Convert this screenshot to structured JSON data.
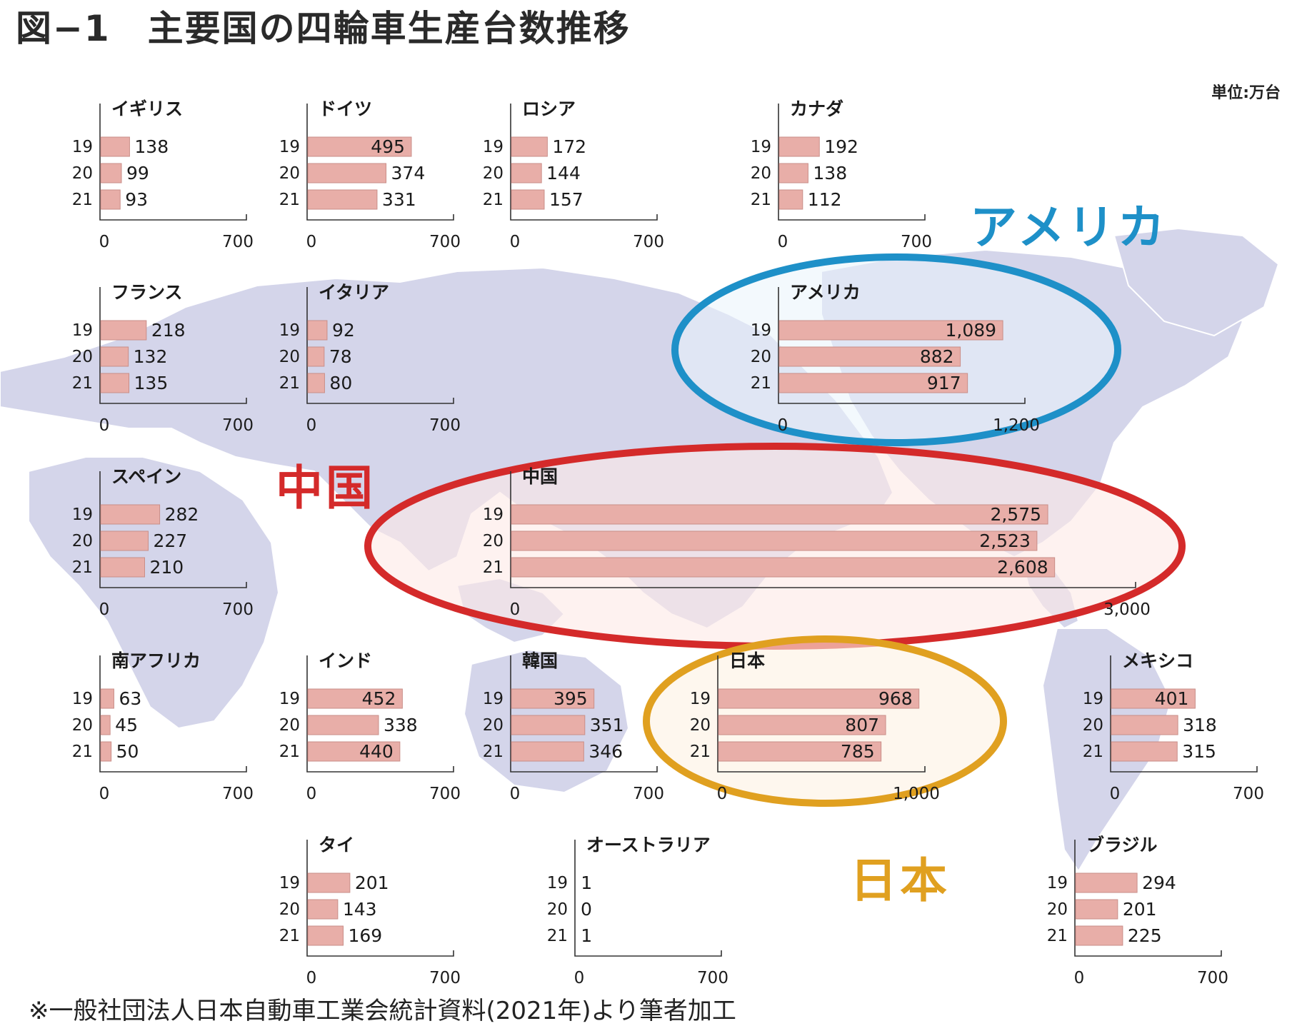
{
  "figure_title": "図−1　主要国の四輪車生産台数推移",
  "unit": "単位:万台",
  "footnote": "※一般社団法人日本自動車工業会統計資料(2021年)より筆者加工",
  "callouts": {
    "america": {
      "text": "アメリカ",
      "color": "#1e90c8"
    },
    "china": {
      "text": "中国",
      "color": "#d42a2a"
    },
    "japan": {
      "text": "日本",
      "color": "#e0a020"
    }
  },
  "highlight_colors": {
    "america": "#1e90c8",
    "china": "#d42a2a",
    "japan": "#e0a020"
  },
  "chart_data": [
    {
      "type": "bar",
      "title": "イギリス",
      "categories": [
        "19",
        "20",
        "21"
      ],
      "values": [
        138,
        99,
        93
      ],
      "labels": [
        "138",
        "99",
        "93"
      ],
      "xlim": [
        0,
        700
      ],
      "ticks": [
        "0",
        "700"
      ]
    },
    {
      "type": "bar",
      "title": "ドイツ",
      "categories": [
        "19",
        "20",
        "21"
      ],
      "values": [
        495,
        374,
        331
      ],
      "labels": [
        "495",
        "374",
        "331"
      ],
      "xlim": [
        0,
        700
      ],
      "ticks": [
        "0",
        "700"
      ]
    },
    {
      "type": "bar",
      "title": "ロシア",
      "categories": [
        "19",
        "20",
        "21"
      ],
      "values": [
        172,
        144,
        157
      ],
      "labels": [
        "172",
        "144",
        "157"
      ],
      "xlim": [
        0,
        700
      ],
      "ticks": [
        "0",
        "700"
      ]
    },
    {
      "type": "bar",
      "title": "カナダ",
      "categories": [
        "19",
        "20",
        "21"
      ],
      "values": [
        192,
        138,
        112
      ],
      "labels": [
        "192",
        "138",
        "112"
      ],
      "xlim": [
        0,
        700
      ],
      "ticks": [
        "0",
        "700"
      ]
    },
    {
      "type": "bar",
      "title": "フランス",
      "categories": [
        "19",
        "20",
        "21"
      ],
      "values": [
        218,
        132,
        135
      ],
      "labels": [
        "218",
        "132",
        "135"
      ],
      "xlim": [
        0,
        700
      ],
      "ticks": [
        "0",
        "700"
      ]
    },
    {
      "type": "bar",
      "title": "イタリア",
      "categories": [
        "19",
        "20",
        "21"
      ],
      "values": [
        92,
        78,
        80
      ],
      "labels": [
        "92",
        "78",
        "80"
      ],
      "xlim": [
        0,
        700
      ],
      "ticks": [
        "0",
        "700"
      ]
    },
    {
      "type": "bar",
      "title": "アメリカ",
      "categories": [
        "19",
        "20",
        "21"
      ],
      "values": [
        1089,
        882,
        917
      ],
      "labels": [
        "1,089",
        "882",
        "917"
      ],
      "xlim": [
        0,
        1200
      ],
      "ticks": [
        "0",
        "1,200"
      ]
    },
    {
      "type": "bar",
      "title": "スペイン",
      "categories": [
        "19",
        "20",
        "21"
      ],
      "values": [
        282,
        227,
        210
      ],
      "labels": [
        "282",
        "227",
        "210"
      ],
      "xlim": [
        0,
        700
      ],
      "ticks": [
        "0",
        "700"
      ]
    },
    {
      "type": "bar",
      "title": "中国",
      "categories": [
        "19",
        "20",
        "21"
      ],
      "values": [
        2575,
        2523,
        2608
      ],
      "labels": [
        "2,575",
        "2,523",
        "2,608"
      ],
      "xlim": [
        0,
        3000
      ],
      "ticks": [
        "0",
        "3,000"
      ]
    },
    {
      "type": "bar",
      "title": "南アフリカ",
      "categories": [
        "19",
        "20",
        "21"
      ],
      "values": [
        63,
        45,
        50
      ],
      "labels": [
        "63",
        "45",
        "50"
      ],
      "xlim": [
        0,
        700
      ],
      "ticks": [
        "0",
        "700"
      ]
    },
    {
      "type": "bar",
      "title": "インド",
      "categories": [
        "19",
        "20",
        "21"
      ],
      "values": [
        452,
        338,
        440
      ],
      "labels": [
        "452",
        "338",
        "440"
      ],
      "xlim": [
        0,
        700
      ],
      "ticks": [
        "0",
        "700"
      ]
    },
    {
      "type": "bar",
      "title": "韓国",
      "categories": [
        "19",
        "20",
        "21"
      ],
      "values": [
        395,
        351,
        346
      ],
      "labels": [
        "395",
        "351",
        "346"
      ],
      "xlim": [
        0,
        700
      ],
      "ticks": [
        "0",
        "700"
      ]
    },
    {
      "type": "bar",
      "title": "日本",
      "categories": [
        "19",
        "20",
        "21"
      ],
      "values": [
        968,
        807,
        785
      ],
      "labels": [
        "968",
        "807",
        "785"
      ],
      "xlim": [
        0,
        1000
      ],
      "ticks": [
        "0",
        "1,000"
      ]
    },
    {
      "type": "bar",
      "title": "メキシコ",
      "categories": [
        "19",
        "20",
        "21"
      ],
      "values": [
        401,
        318,
        315
      ],
      "labels": [
        "401",
        "318",
        "315"
      ],
      "xlim": [
        0,
        700
      ],
      "ticks": [
        "0",
        "700"
      ]
    },
    {
      "type": "bar",
      "title": "タイ",
      "categories": [
        "19",
        "20",
        "21"
      ],
      "values": [
        201,
        143,
        169
      ],
      "labels": [
        "201",
        "143",
        "169"
      ],
      "xlim": [
        0,
        700
      ],
      "ticks": [
        "0",
        "700"
      ]
    },
    {
      "type": "bar",
      "title": "オーストラリア",
      "categories": [
        "19",
        "20",
        "21"
      ],
      "values": [
        1,
        0,
        1
      ],
      "labels": [
        "1",
        "0",
        "1"
      ],
      "xlim": [
        0,
        700
      ],
      "ticks": [
        "0",
        "700"
      ]
    },
    {
      "type": "bar",
      "title": "ブラジル",
      "categories": [
        "19",
        "20",
        "21"
      ],
      "values": [
        294,
        201,
        225
      ],
      "labels": [
        "294",
        "201",
        "225"
      ],
      "xlim": [
        0,
        700
      ],
      "ticks": [
        "0",
        "700"
      ]
    }
  ]
}
